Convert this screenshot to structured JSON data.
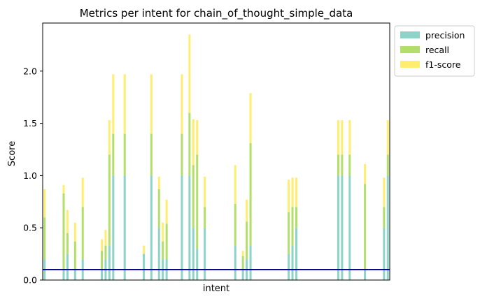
{
  "chart_data": {
    "type": "bar",
    "stacked": true,
    "title": "Metrics per intent for chain_of_thought_simple_data",
    "xlabel": "intent",
    "ylabel": "Score",
    "ylim": [
      0,
      2.46
    ],
    "yticks": [
      0.0,
      0.5,
      1.0,
      1.5,
      2.0
    ],
    "ytick_labels": [
      "0.0",
      "0.5",
      "1.0",
      "1.5",
      "2.0"
    ],
    "num_categories": 91,
    "legend_position": "outside-top-right",
    "grid": false,
    "threshold_line": {
      "value": 0.1,
      "color": "#0000cc"
    },
    "series": [
      {
        "name": "precision",
        "color": "#8dd3c7",
        "values": [
          0.2,
          0,
          0,
          0,
          0,
          0.1,
          0.25,
          0,
          0.1,
          0,
          0.2,
          0,
          0,
          0,
          0,
          0.1,
          0.2,
          0.33,
          1.0,
          0,
          0,
          1.0,
          0,
          0,
          0,
          0,
          0.25,
          0,
          1.0,
          0,
          0.5,
          0.2,
          0.2,
          0,
          0,
          0,
          1.0,
          0,
          1.0,
          0.5,
          0.3,
          0,
          0.5,
          0,
          0,
          0,
          0,
          0,
          0,
          0,
          0.33,
          0,
          0.1,
          0.2,
          0.33,
          0,
          0,
          0,
          0,
          0,
          0,
          0,
          0,
          0,
          0.25,
          0.33,
          0.5,
          0,
          0,
          0,
          0,
          0,
          0,
          0,
          0,
          0,
          0,
          1.0,
          1.0,
          0,
          1.0,
          0,
          0,
          0,
          0.1,
          0,
          0,
          0,
          0,
          0.5,
          1.0
        ]
      },
      {
        "name": "recall",
        "color": "#b3de69",
        "values": [
          0.4,
          0,
          0,
          0,
          0,
          0.73,
          0.2,
          0,
          0.27,
          0,
          0.5,
          0,
          0,
          0,
          0,
          0.18,
          0.13,
          0.87,
          0.4,
          0,
          0,
          0.4,
          0,
          0,
          0,
          0,
          0.0,
          0,
          0.4,
          0,
          0.37,
          0.17,
          0.34,
          0,
          0,
          0,
          0.4,
          0,
          0.6,
          0.6,
          0.9,
          0,
          0.2,
          0,
          0,
          0,
          0,
          0,
          0,
          0,
          0.4,
          0,
          0.13,
          0.36,
          0.98,
          0,
          0,
          0,
          0,
          0,
          0,
          0,
          0,
          0,
          0.4,
          0.37,
          0.2,
          0,
          0,
          0,
          0,
          0,
          0,
          0,
          0,
          0,
          0,
          0.2,
          0.2,
          0,
          0.2,
          0,
          0,
          0,
          0.82,
          0,
          0,
          0,
          0,
          0.2,
          0.2
        ]
      },
      {
        "name": "f1-score",
        "color": "#ffed6f",
        "values": [
          0.27,
          0,
          0,
          0,
          0,
          0.08,
          0.22,
          0,
          0.18,
          0,
          0.28,
          0,
          0,
          0,
          0,
          0.11,
          0.15,
          0.33,
          0.57,
          0,
          0,
          0.57,
          0,
          0,
          0,
          0,
          0.08,
          0,
          0.57,
          0,
          0.12,
          0.18,
          0.23,
          0,
          0,
          0,
          0.57,
          0,
          0.75,
          0.44,
          0.33,
          0,
          0.29,
          0,
          0,
          0,
          0,
          0,
          0,
          0,
          0.37,
          0,
          0.05,
          0.21,
          0.48,
          0,
          0,
          0,
          0,
          0,
          0,
          0,
          0,
          0,
          0.31,
          0.28,
          0.28,
          0,
          0,
          0,
          0,
          0,
          0,
          0,
          0,
          0,
          0,
          0.33,
          0.33,
          0,
          0.33,
          0,
          0,
          0,
          0.19,
          0,
          0,
          0,
          0,
          0.28,
          0.33
        ]
      }
    ]
  }
}
